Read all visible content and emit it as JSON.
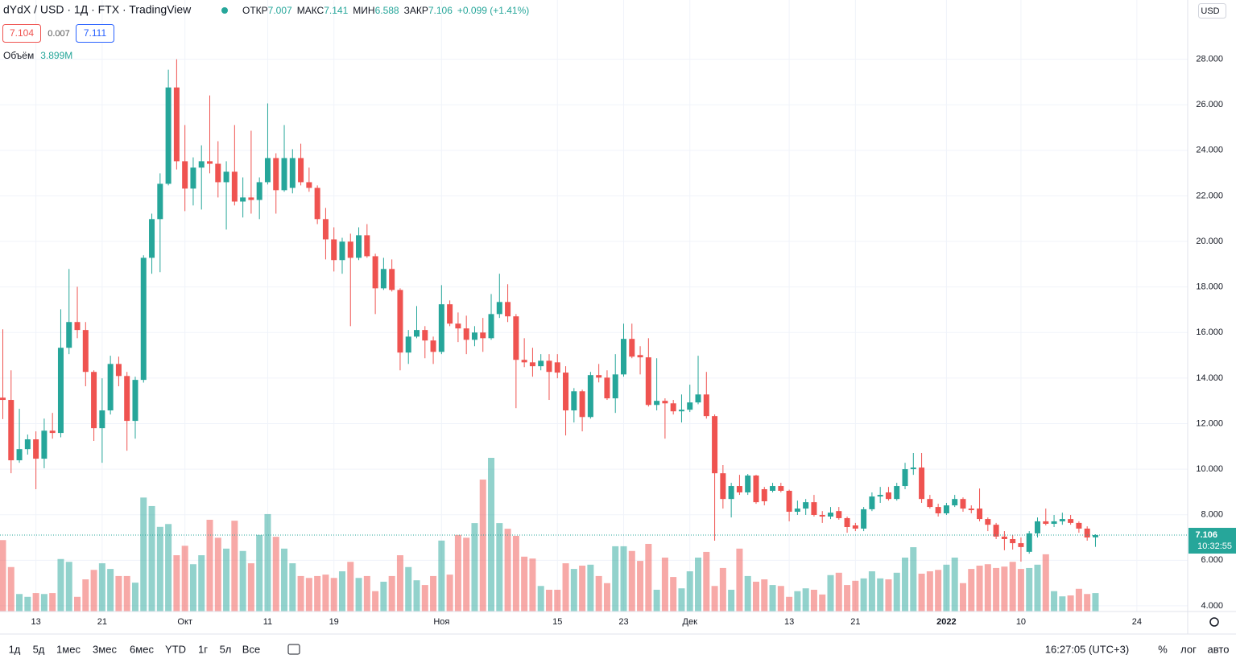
{
  "header": {
    "symbol": "dYdX / USD · 1Д · FTX · TradingView",
    "open_label": "ОТКР",
    "high_label": "МАКС",
    "low_label": "МИН",
    "close_label": "ЗАКР",
    "change": "+0.099 (+1.41%)",
    "bid": "7.104",
    "spread": "0.007",
    "ask": "7.111",
    "volume_label": "Объём",
    "volume_last": "3.899M",
    "currency": "USD",
    "countdown": "10:32:55"
  },
  "toolbar": {
    "ranges": [
      "1д",
      "5д",
      "1мес",
      "3мес",
      "6мес",
      "YTD",
      "1г",
      "5л",
      "Все"
    ],
    "time": "16:27:05 (UTC+3)",
    "percent": "%",
    "log": "лог",
    "auto": "авто"
  },
  "chart_data": {
    "type": "candlestick",
    "ylim": [
      3.75,
      30.6
    ],
    "yticks": [
      {
        "value": 4,
        "label": "4.000"
      },
      {
        "value": 6,
        "label": "6.000"
      },
      {
        "value": 8,
        "label": "8.000"
      },
      {
        "value": 10,
        "label": "10.000"
      },
      {
        "value": 12,
        "label": "12.000"
      },
      {
        "value": 14,
        "label": "14.000"
      },
      {
        "value": 16,
        "label": "16.000"
      },
      {
        "value": 18,
        "label": "18.000"
      },
      {
        "value": 20,
        "label": "20.000"
      },
      {
        "value": 22,
        "label": "22.000"
      },
      {
        "value": 24,
        "label": "24.000"
      },
      {
        "value": 26,
        "label": "26.000"
      },
      {
        "value": 28,
        "label": "28.000"
      }
    ],
    "grid": true,
    "up_color": "#26a69a",
    "down_color": "#ef5350",
    "categories": [
      null,
      null,
      null,
      null,
      "13",
      null,
      null,
      null,
      null,
      null,
      null,
      null,
      "21",
      null,
      null,
      null,
      null,
      null,
      null,
      null,
      null,
      null,
      "Окт",
      null,
      null,
      null,
      null,
      null,
      null,
      null,
      null,
      null,
      "11",
      null,
      null,
      null,
      null,
      null,
      null,
      null,
      "19",
      null,
      null,
      null,
      null,
      null,
      null,
      null,
      null,
      null,
      null,
      null,
      null,
      "Ноя",
      null,
      null,
      null,
      null,
      null,
      null,
      null,
      null,
      null,
      null,
      null,
      null,
      null,
      "15",
      null,
      null,
      null,
      null,
      null,
      null,
      null,
      "23",
      null,
      null,
      null,
      null,
      null,
      null,
      null,
      "Дек",
      null,
      null,
      null,
      null,
      null,
      null,
      null,
      null,
      null,
      null,
      null,
      "13",
      null,
      null,
      null,
      null,
      null,
      null,
      null,
      "21",
      null,
      null,
      null,
      null,
      null,
      null,
      null,
      null,
      null,
      null,
      "2022",
      null,
      null,
      null,
      null,
      null,
      null,
      null,
      null,
      "10",
      null,
      null,
      null,
      null,
      null,
      null,
      null,
      null,
      null,
      null,
      null,
      null,
      null,
      "24"
    ],
    "open": [
      13.14,
      13.04,
      10.39,
      10.88,
      11.31,
      10.46,
      11.69,
      11.59,
      15.33,
      16.46,
      16.11,
      14.27,
      11.8,
      12.58,
      14.62,
      14.09,
      12.12,
      13.92,
      19.28,
      20.98,
      22.53,
      26.76,
      23.52,
      22.32,
      23.24,
      23.52,
      23.41,
      22.6,
      23.06,
      21.75,
      21.93,
      21.82,
      22.6,
      23.66,
      22.25,
      22.35,
      23.66,
      22.6,
      22.35,
      20.98,
      20.09,
      19.18,
      19.99,
      19.28,
      20.27,
      19.35,
      17.94,
      18.79,
      17.87,
      15.12,
      15.82,
      16.11,
      15.65,
      15.15,
      17.24,
      16.39,
      16.18,
      15.68,
      16.0,
      15.75,
      16.81,
      17.34,
      16.71,
      14.8,
      14.69,
      14.52,
      14.76,
      14.69,
      14.24,
      12.58,
      13.42,
      12.29,
      14.13,
      14.02,
      13.11,
      14.16,
      15.72,
      15.01,
      14.91,
      12.82,
      13.0,
      12.89,
      12.54,
      12.61,
      12.93,
      13.28,
      12.33,
      9.82,
      8.69,
      9.26,
      8.98,
      9.72,
      9.12,
      9.05,
      9.26,
      9.05,
      8.13,
      8.27,
      8.55,
      7.99,
      7.92,
      8.16,
      7.85,
      7.53,
      7.39,
      8.24,
      8.8,
      8.98,
      8.69,
      9.26,
      10.0,
      10.07,
      8.69,
      8.34,
      8.06,
      8.41,
      8.69,
      8.27,
      8.27,
      7.81,
      7.56,
      7.04,
      6.93,
      6.75,
      6.37,
      7.18,
      7.71,
      7.6,
      7.71,
      7.81,
      7.64,
      7.39,
      7.007,
      null,
      null,
      null,
      null,
      null
    ],
    "high": [
      16.14,
      14.34,
      12.65,
      11.52,
      11.66,
      12.22,
      12.47,
      17.02,
      18.79,
      18.01,
      16.46,
      14.34,
      13.99,
      14.98,
      14.94,
      14.27,
      14.06,
      19.39,
      21.22,
      22.99,
      27.54,
      28.0,
      25.11,
      23.69,
      24.22,
      26.41,
      24.4,
      23.52,
      25.11,
      22.81,
      24.86,
      22.81,
      26.06,
      23.87,
      25.11,
      24.05,
      24.29,
      23.24,
      22.46,
      21.47,
      20.62,
      20.16,
      20.34,
      20.62,
      20.76,
      19.46,
      19.28,
      19.21,
      17.94,
      16.11,
      17.16,
      16.28,
      15.82,
      18.08,
      17.41,
      16.88,
      16.74,
      16.28,
      16.64,
      17.69,
      18.58,
      18.12,
      16.81,
      15.75,
      15.33,
      15.05,
      15.05,
      15.05,
      14.52,
      13.56,
      13.49,
      14.27,
      14.62,
      14.34,
      15.05,
      16.39,
      16.39,
      15.4,
      15.75,
      14.87,
      13.11,
      13.04,
      13.28,
      13.71,
      14.98,
      14.27,
      12.4,
      10.18,
      9.4,
      9.75,
      9.79,
      9.75,
      9.22,
      9.4,
      9.4,
      9.1,
      8.62,
      8.69,
      8.87,
      8.16,
      8.34,
      8.34,
      7.92,
      7.64,
      8.34,
      8.98,
      9.22,
      9.22,
      9.4,
      10.28,
      10.71,
      10.71,
      8.87,
      8.48,
      8.52,
      8.87,
      8.76,
      8.41,
      9.15,
      7.88,
      7.64,
      7.28,
      7.11,
      7.0,
      7.28,
      7.88,
      8.27,
      7.99,
      8.09,
      7.99,
      7.71,
      7.49,
      7.141,
      null,
      null,
      null,
      null,
      null
    ],
    "low": [
      12.2,
      9.82,
      10.28,
      10.64,
      9.12,
      10.04,
      11.34,
      11.4,
      15.05,
      15.75,
      13.64,
      11.24,
      10.28,
      12.4,
      13.64,
      10.81,
      11.34,
      13.8,
      18.58,
      18.65,
      22.46,
      23.16,
      21.33,
      21.58,
      21.4,
      22.99,
      21.93,
      20.52,
      21.58,
      21.05,
      21.22,
      20.98,
      22.5,
      21.22,
      22.18,
      22.11,
      22.46,
      22.18,
      20.76,
      19.21,
      18.68,
      18.58,
      16.28,
      19.18,
      19.28,
      16.81,
      17.87,
      17.8,
      14.34,
      14.62,
      15.75,
      14.87,
      14.62,
      15.05,
      16.28,
      15.58,
      15.05,
      15.4,
      15.15,
      15.68,
      16.64,
      16.46,
      12.68,
      14.48,
      14.06,
      14.34,
      13.04,
      13.99,
      11.48,
      12.05,
      11.66,
      12.22,
      13.81,
      13.04,
      12.47,
      14.06,
      14.87,
      14.16,
      12.75,
      12.58,
      11.34,
      12.4,
      12.05,
      12.51,
      12.85,
      12.22,
      6.86,
      8.27,
      7.88,
      8.87,
      8.87,
      8.48,
      8.41,
      8.98,
      8.98,
      7.71,
      7.99,
      7.99,
      7.92,
      7.64,
      7.81,
      7.78,
      7.21,
      7.28,
      7.28,
      8.16,
      8.52,
      8.62,
      8.62,
      9.12,
      9.75,
      8.52,
      8.27,
      7.92,
      7.99,
      8.34,
      8.13,
      8.06,
      7.71,
      7.28,
      6.93,
      6.44,
      6.47,
      5.94,
      6.29,
      7.0,
      7.53,
      7.46,
      7.56,
      7.56,
      7.21,
      6.86,
      6.588,
      null,
      null,
      null,
      null,
      null
    ],
    "close": [
      13.04,
      10.39,
      10.88,
      11.31,
      10.46,
      11.69,
      11.59,
      15.33,
      16.46,
      16.11,
      14.27,
      11.8,
      12.58,
      14.62,
      14.09,
      12.12,
      13.92,
      19.28,
      20.98,
      22.53,
      26.76,
      23.52,
      22.32,
      23.24,
      23.52,
      23.41,
      22.6,
      23.06,
      21.75,
      21.93,
      21.82,
      22.6,
      23.66,
      22.25,
      23.66,
      23.66,
      22.6,
      22.35,
      20.98,
      20.09,
      19.18,
      19.99,
      19.28,
      20.27,
      19.35,
      17.94,
      18.79,
      17.87,
      15.12,
      15.82,
      16.11,
      15.65,
      15.15,
      17.24,
      16.39,
      16.18,
      15.68,
      16.0,
      15.75,
      16.81,
      17.34,
      16.71,
      14.8,
      14.69,
      14.52,
      14.76,
      14.27,
      14.24,
      12.58,
      13.42,
      12.29,
      14.13,
      14.02,
      13.11,
      14.16,
      15.72,
      14.94,
      14.91,
      12.82,
      13.0,
      12.89,
      12.54,
      12.61,
      12.93,
      13.28,
      12.33,
      9.82,
      8.69,
      9.26,
      8.98,
      9.72,
      8.55,
      8.59,
      9.26,
      9.05,
      8.13,
      8.27,
      8.55,
      7.99,
      7.92,
      8.09,
      7.85,
      7.46,
      7.39,
      8.24,
      8.8,
      8.87,
      8.69,
      9.26,
      10.0,
      10.07,
      8.69,
      8.34,
      8.06,
      8.41,
      8.69,
      8.27,
      8.2,
      7.81,
      7.56,
      7.04,
      6.93,
      6.75,
      6.58,
      7.18,
      7.71,
      7.6,
      7.71,
      7.81,
      7.64,
      7.39,
      7.0,
      7.106,
      null,
      null,
      null,
      null,
      null
    ],
    "volume": [
      15.1,
      9.4,
      3.7,
      3.1,
      3.9,
      3.7,
      3.9,
      11.1,
      10.5,
      3.1,
      6.8,
      8.8,
      10.2,
      9.0,
      7.5,
      7.5,
      6.1,
      24.1,
      22.3,
      17.9,
      18.5,
      11.9,
      13.9,
      10.0,
      11.9,
      19.4,
      15.6,
      13.3,
      19.2,
      12.8,
      10.2,
      16.2,
      20.6,
      15.8,
      13.3,
      10.2,
      7.5,
      7.1,
      7.5,
      7.8,
      7.1,
      8.5,
      10.5,
      7.1,
      7.5,
      4.3,
      6.3,
      7.5,
      11.9,
      9.4,
      6.6,
      5.6,
      7.5,
      15.0,
      7.8,
      16.2,
      15.6,
      18.7,
      27.9,
      32.5,
      18.7,
      17.5,
      16.0,
      11.6,
      11.2,
      5.4,
      4.6,
      4.6,
      10.2,
      9.0,
      9.7,
      9.9,
      7.5,
      6.0,
      13.8,
      13.8,
      12.8,
      10.7,
      14.3,
      4.6,
      11.4,
      7.3,
      4.9,
      8.5,
      11.4,
      12.6,
      5.4,
      9.2,
      4.6,
      13.3,
      7.5,
      6.3,
      6.8,
      5.6,
      5.4,
      3.1,
      4.3,
      4.9,
      4.6,
      3.6,
      7.7,
      8.2,
      5.6,
      6.5,
      7.0,
      8.5,
      7.0,
      6.8,
      8.2,
      11.4,
      13.6,
      8.0,
      8.5,
      8.8,
      9.9,
      11.4,
      6.0,
      9.0,
      9.7,
      10.0,
      9.2,
      9.5,
      10.5,
      9.0,
      9.2,
      9.9,
      12.1,
      4.3,
      3.2,
      3.4,
      4.8,
      3.7,
      3.899,
      null,
      null,
      null,
      null,
      null
    ]
  }
}
